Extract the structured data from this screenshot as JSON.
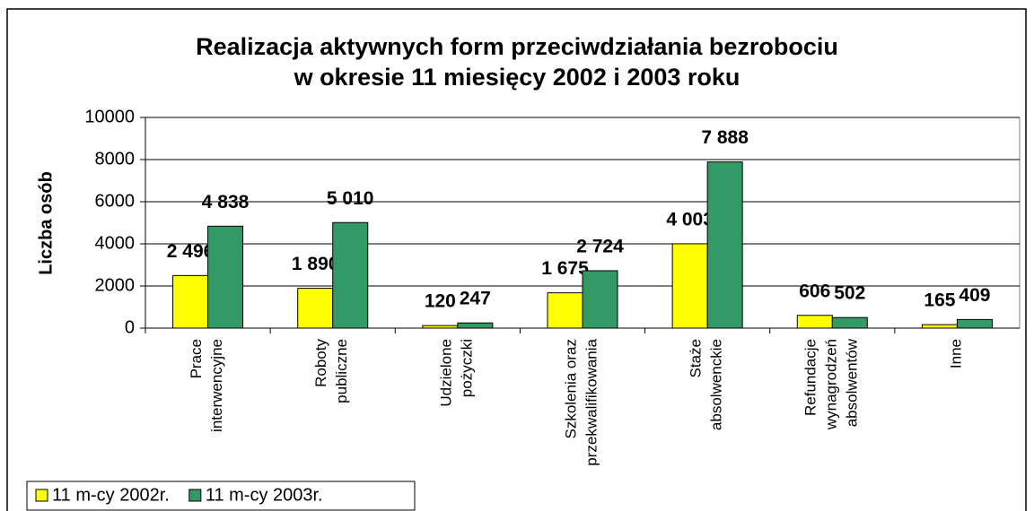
{
  "chart_data": {
    "type": "bar",
    "title": "Realizacja aktywnych form przeciwdziałania bezrobociu\nw okresie 11 miesięcy 2002 i 2003 roku",
    "y_label": "Liczba osób",
    "categories": [
      "Prace\ninterwencyjne",
      "Roboty\npubliczne",
      "Udzielone\npożyczki",
      "Szkolenia oraz\nprzekwalifikowania",
      "Staże\nabsolwenckie",
      "Refundacje\nwynagrodzeń\nabsolwentów",
      "Inne"
    ],
    "series": [
      {
        "name": "11 m-cy 2002r.",
        "color": "#ffff00",
        "values": [
          2496,
          1890,
          120,
          1675,
          4003,
          606,
          165
        ],
        "value_labels": [
          "2 496",
          "1 890",
          "120",
          "1 675",
          "4 003",
          "606",
          "165"
        ]
      },
      {
        "name": "11 m-cy 2003r.",
        "color": "#339966",
        "values": [
          4838,
          5010,
          247,
          2724,
          7888,
          502,
          409
        ],
        "value_labels": [
          "4 838",
          "5 010",
          "247",
          "2 724",
          "7 888",
          "502",
          "409"
        ]
      }
    ],
    "ylim": [
      0,
      10000
    ],
    "yticks": [
      0,
      2000,
      4000,
      6000,
      8000,
      10000
    ],
    "grid": true
  }
}
